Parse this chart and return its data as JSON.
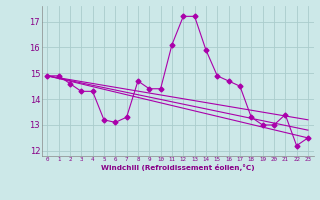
{
  "xlabel": "Windchill (Refroidissement éolien,°C)",
  "ylabel": "",
  "background_color": "#cce8e8",
  "grid_color": "#aacccc",
  "line_color": "#aa00aa",
  "xlim": [
    -0.5,
    23.5
  ],
  "ylim": [
    11.8,
    17.6
  ],
  "yticks": [
    12,
    13,
    14,
    15,
    16,
    17
  ],
  "xticks": [
    0,
    1,
    2,
    3,
    4,
    5,
    6,
    7,
    8,
    9,
    10,
    11,
    12,
    13,
    14,
    15,
    16,
    17,
    18,
    19,
    20,
    21,
    22,
    23
  ],
  "series1_x": [
    0,
    1,
    2,
    3,
    4,
    5,
    6,
    7,
    8,
    9,
    10,
    11,
    12,
    13,
    14,
    15,
    16,
    17,
    18,
    19,
    20,
    21,
    22,
    23
  ],
  "series1_y": [
    14.9,
    14.9,
    14.6,
    14.3,
    14.3,
    13.2,
    13.1,
    13.3,
    14.7,
    14.4,
    14.4,
    16.1,
    17.2,
    17.2,
    15.9,
    14.9,
    14.7,
    14.5,
    13.3,
    13.0,
    13.0,
    13.4,
    12.2,
    12.5
  ],
  "series2_x": [
    0,
    23
  ],
  "series2_y": [
    14.9,
    12.5
  ],
  "series3_x": [
    0,
    23
  ],
  "series3_y": [
    14.9,
    13.2
  ],
  "series4_x": [
    0,
    23
  ],
  "series4_y": [
    14.9,
    12.8
  ]
}
